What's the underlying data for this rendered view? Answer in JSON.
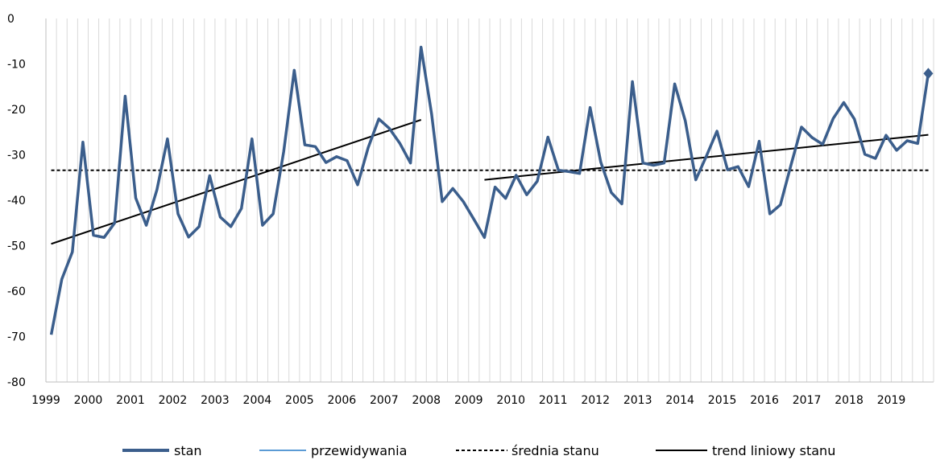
{
  "chart_data": {
    "type": "line",
    "title": "",
    "xlabel": "",
    "ylabel": "",
    "ylim": [
      -80,
      0
    ],
    "yticks": [
      0,
      -10,
      -20,
      -30,
      -40,
      -50,
      -60,
      -70,
      -80
    ],
    "xtick_labels": [
      "1999",
      "2000",
      "2001",
      "2002",
      "2003",
      "2004",
      "2005",
      "2006",
      "2007",
      "2008",
      "2009",
      "2010",
      "2011",
      "2012",
      "2013",
      "2014",
      "2015",
      "2016",
      "2017",
      "2018",
      "2019"
    ],
    "grid": "vertical",
    "legend_position": "bottom",
    "x_quarters_start": "1999Q1",
    "series": [
      {
        "name": "stan",
        "color": "#3b5e8c",
        "values": [
          -69.6,
          -57.4,
          -51.4,
          -27.2,
          -47.7,
          -48.2,
          -45,
          -17.1,
          -39.5,
          -45.5,
          -37.7,
          -26.5,
          -43,
          -48.1,
          -45.8,
          -34.6,
          -43.7,
          -45.8,
          -41.8,
          -26.5,
          -45.5,
          -43,
          -29.3,
          -11.4,
          -27.8,
          -28.2,
          -31.7,
          -30.4,
          -31.3,
          -36.6,
          -28.4,
          -22.1,
          -24.2,
          -27.5,
          -31.8,
          -6.3,
          -21,
          -40.3,
          -37.4,
          -40.3,
          -44.2,
          -48.2,
          -37.1,
          -39.6,
          -34.5,
          -38.8,
          -35.8,
          -26.1,
          -33.4,
          -33.7,
          -34.1,
          -19.6,
          -31.6,
          -38.3,
          -40.8,
          -13.9,
          -31.8,
          -32.3,
          -31.8,
          -14.4,
          -22.5,
          -35.5,
          -30.3,
          -24.8,
          -33.3,
          -32.6,
          -37,
          -27,
          -43,
          -41,
          -32.3,
          -23.9,
          -26.2,
          -27.7,
          -22,
          -18.5,
          -22.1,
          -29.9,
          -30.8,
          -25.7,
          -29,
          -26.9,
          -27.5,
          -12.1
        ]
      },
      {
        "name": "przewidywania",
        "color": "#5b9bd5",
        "values": []
      },
      {
        "name": "średnia stanu",
        "color": "#000000",
        "dash": "4,3",
        "value": -33.4
      },
      {
        "name": "trend liniowy stanu",
        "color": "#000000",
        "segments": [
          {
            "from_index": 0,
            "to_index": 35,
            "y_start": -49.6,
            "y_end": -22.3
          },
          {
            "from_index": 41,
            "to_index": 83,
            "y_start": -35.5,
            "y_end": -25.6
          }
        ]
      }
    ]
  }
}
